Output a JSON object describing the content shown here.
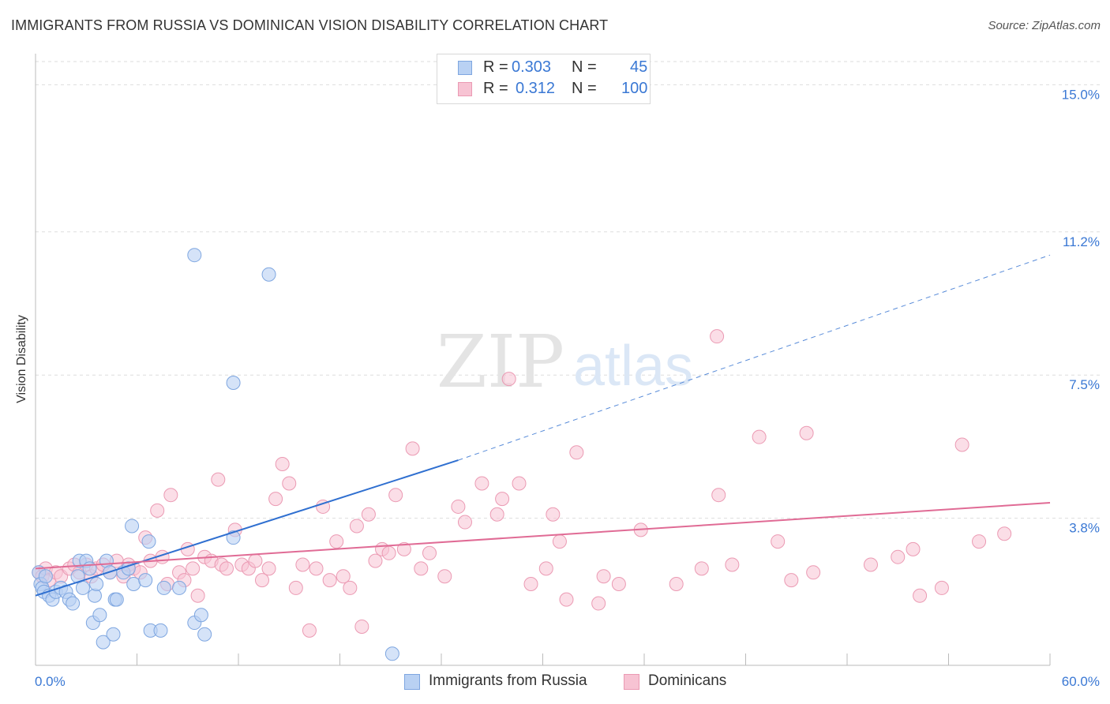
{
  "header": {
    "title": "IMMIGRANTS FROM RUSSIA VS DOMINICAN VISION DISABILITY CORRELATION CHART",
    "source": "Source: ZipAtlas.com"
  },
  "colors": {
    "blue_fill": "#b9d1f3",
    "blue_stroke": "#7ea6e0",
    "blue_line": "#2f6fd0",
    "pink_fill": "#f7c3d3",
    "pink_stroke": "#eb9ab3",
    "pink_line": "#e06b95",
    "tick_label": "#3a78d4",
    "grid": "#dddddd"
  },
  "legend": {
    "rows": [
      {
        "r_label": "R =",
        "r_value": "0.303",
        "n_label": "N =",
        "n_value": "45"
      },
      {
        "r_label": "R =",
        "r_value": "0.312",
        "n_label": "N =",
        "n_value": "100"
      }
    ]
  },
  "watermark": {
    "zip": "ZIP",
    "atlas": "atlas"
  },
  "chart_data": {
    "type": "scatter",
    "title": "IMMIGRANTS FROM RUSSIA VS DOMINICAN VISION DISABILITY CORRELATION CHART",
    "xlabel": "",
    "ylabel": "Vision Disability",
    "xlim": [
      0,
      60
    ],
    "ylim": [
      0,
      15.6
    ],
    "x_tick_labels": [
      "0.0%",
      "60.0%"
    ],
    "y_ticks": [
      3.8,
      7.5,
      11.2,
      15.0
    ],
    "y_tick_labels": [
      "3.8%",
      "7.5%",
      "11.2%",
      "15.0%"
    ],
    "grid": "horizontal dashed",
    "legend_position": "top-center",
    "series": [
      {
        "name": "Immigrants from Russia",
        "color": "#b9d1f3",
        "trend": {
          "x": [
            0,
            25
          ],
          "y": [
            1.8,
            5.3
          ],
          "dashed_to": [
            60,
            10.6
          ]
        },
        "points": [
          [
            0.2,
            2.4
          ],
          [
            0.3,
            2.1
          ],
          [
            0.4,
            2.0
          ],
          [
            0.5,
            1.9
          ],
          [
            0.6,
            2.3
          ],
          [
            0.8,
            1.8
          ],
          [
            1.0,
            1.7
          ],
          [
            1.2,
            1.9
          ],
          [
            1.5,
            2.0
          ],
          [
            1.8,
            1.9
          ],
          [
            2.0,
            1.7
          ],
          [
            2.2,
            1.6
          ],
          [
            2.5,
            2.3
          ],
          [
            2.6,
            2.7
          ],
          [
            2.8,
            2.0
          ],
          [
            3.0,
            2.7
          ],
          [
            3.2,
            2.5
          ],
          [
            3.4,
            1.1
          ],
          [
            3.5,
            1.8
          ],
          [
            3.6,
            2.1
          ],
          [
            3.8,
            1.3
          ],
          [
            4.0,
            0.6
          ],
          [
            4.2,
            2.7
          ],
          [
            4.4,
            2.4
          ],
          [
            4.6,
            0.8
          ],
          [
            4.7,
            1.7
          ],
          [
            4.8,
            1.7
          ],
          [
            5.2,
            2.4
          ],
          [
            5.5,
            2.5
          ],
          [
            5.7,
            3.6
          ],
          [
            5.8,
            2.1
          ],
          [
            6.5,
            2.2
          ],
          [
            6.7,
            3.2
          ],
          [
            6.8,
            0.9
          ],
          [
            7.4,
            0.9
          ],
          [
            7.6,
            2.0
          ],
          [
            8.5,
            2.0
          ],
          [
            9.4,
            1.1
          ],
          [
            9.8,
            1.3
          ],
          [
            10.0,
            0.8
          ],
          [
            11.7,
            3.3
          ],
          [
            9.4,
            10.6
          ],
          [
            13.8,
            10.1
          ],
          [
            11.7,
            7.3
          ],
          [
            21.1,
            0.3
          ]
        ]
      },
      {
        "name": "Dominicans",
        "color": "#f7c3d3",
        "trend": {
          "x": [
            0,
            60
          ],
          "y": [
            2.5,
            4.2
          ]
        },
        "points": [
          [
            0.2,
            2.4
          ],
          [
            0.4,
            2.3
          ],
          [
            0.6,
            2.5
          ],
          [
            0.8,
            2.2
          ],
          [
            1.2,
            2.4
          ],
          [
            1.5,
            2.3
          ],
          [
            2.0,
            2.5
          ],
          [
            2.3,
            2.6
          ],
          [
            2.6,
            2.4
          ],
          [
            3.0,
            2.6
          ],
          [
            3.3,
            2.3
          ],
          [
            3.6,
            2.5
          ],
          [
            4.0,
            2.6
          ],
          [
            4.4,
            2.4
          ],
          [
            4.8,
            2.7
          ],
          [
            5.2,
            2.3
          ],
          [
            5.5,
            2.6
          ],
          [
            5.8,
            2.5
          ],
          [
            6.2,
            2.4
          ],
          [
            6.5,
            3.3
          ],
          [
            6.8,
            2.7
          ],
          [
            7.2,
            4.0
          ],
          [
            7.5,
            2.8
          ],
          [
            7.8,
            2.1
          ],
          [
            8.0,
            4.4
          ],
          [
            8.5,
            2.4
          ],
          [
            8.8,
            2.2
          ],
          [
            9.0,
            3.0
          ],
          [
            9.3,
            2.5
          ],
          [
            9.6,
            1.8
          ],
          [
            10.0,
            2.8
          ],
          [
            10.4,
            2.7
          ],
          [
            10.8,
            4.8
          ],
          [
            11.0,
            2.6
          ],
          [
            11.3,
            2.5
          ],
          [
            11.8,
            3.5
          ],
          [
            12.2,
            2.6
          ],
          [
            12.6,
            2.5
          ],
          [
            13.0,
            2.7
          ],
          [
            13.4,
            2.2
          ],
          [
            13.8,
            2.5
          ],
          [
            14.2,
            4.3
          ],
          [
            14.6,
            5.2
          ],
          [
            15.0,
            4.7
          ],
          [
            15.4,
            2.0
          ],
          [
            15.8,
            2.6
          ],
          [
            16.2,
            0.9
          ],
          [
            16.6,
            2.5
          ],
          [
            17.0,
            4.1
          ],
          [
            17.4,
            2.2
          ],
          [
            17.8,
            3.2
          ],
          [
            18.2,
            2.3
          ],
          [
            18.6,
            2.0
          ],
          [
            19.0,
            3.6
          ],
          [
            19.3,
            1.0
          ],
          [
            19.7,
            3.9
          ],
          [
            20.1,
            2.7
          ],
          [
            20.5,
            3.0
          ],
          [
            20.9,
            2.9
          ],
          [
            21.3,
            4.4
          ],
          [
            21.8,
            3.0
          ],
          [
            22.3,
            5.6
          ],
          [
            22.8,
            2.5
          ],
          [
            23.3,
            2.9
          ],
          [
            24.2,
            2.3
          ],
          [
            25.0,
            4.1
          ],
          [
            25.4,
            3.7
          ],
          [
            26.4,
            4.7
          ],
          [
            27.3,
            3.9
          ],
          [
            27.6,
            4.3
          ],
          [
            28.0,
            7.4
          ],
          [
            28.6,
            4.7
          ],
          [
            29.3,
            2.1
          ],
          [
            30.2,
            2.5
          ],
          [
            30.6,
            3.9
          ],
          [
            31.0,
            3.2
          ],
          [
            31.4,
            1.7
          ],
          [
            32.0,
            5.5
          ],
          [
            33.3,
            1.6
          ],
          [
            33.6,
            2.3
          ],
          [
            34.5,
            2.1
          ],
          [
            35.8,
            3.5
          ],
          [
            37.9,
            2.1
          ],
          [
            39.4,
            2.5
          ],
          [
            40.3,
            8.5
          ],
          [
            40.4,
            4.4
          ],
          [
            41.2,
            2.6
          ],
          [
            42.8,
            5.9
          ],
          [
            43.9,
            3.2
          ],
          [
            44.7,
            2.2
          ],
          [
            45.6,
            6.0
          ],
          [
            46.0,
            2.4
          ],
          [
            49.4,
            2.6
          ],
          [
            51.0,
            2.8
          ],
          [
            52.3,
            1.8
          ],
          [
            51.9,
            3.0
          ],
          [
            53.6,
            2.0
          ],
          [
            54.8,
            5.7
          ],
          [
            55.8,
            3.2
          ],
          [
            57.3,
            3.4
          ]
        ]
      }
    ]
  }
}
